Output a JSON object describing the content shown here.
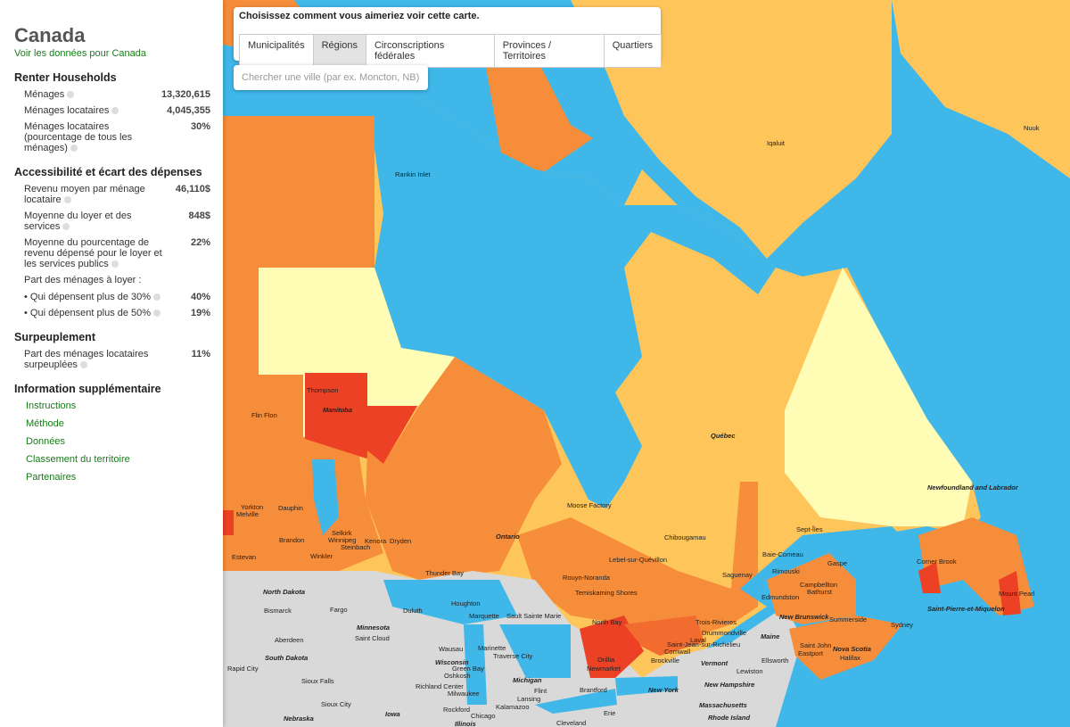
{
  "sidebar": {
    "title": "Canada",
    "link": "Voir les données pour Canada",
    "sections": [
      {
        "heading": "Renter Households",
        "rows": [
          [
            "Ménages",
            "13,320,615"
          ],
          [
            "Ménages locataires",
            "4,045,355"
          ],
          [
            "Ménages locataires (pourcentage de tous les ménages)",
            "30%"
          ]
        ]
      },
      {
        "heading": "Accessibilité et écart des dépenses",
        "rows": [
          [
            "Revenu moyen par ménage locataire",
            "46,110$"
          ],
          [
            "Moyenne du loyer et des services",
            "848$"
          ],
          [
            "Moyenne du pourcentage de revenu dépensé pour le loyer et les services publics",
            "22%"
          ]
        ],
        "subheading": "Part des ménages à loyer :",
        "subrows": [
          [
            "• Qui dépensent plus de 30%",
            "40%"
          ],
          [
            "• Qui dépensent plus de 50%",
            "19%"
          ]
        ]
      },
      {
        "heading": "Surpeuplement",
        "rows": [
          [
            "Part des ménages locataires surpeuplées",
            "11%"
          ]
        ]
      }
    ],
    "info_heading": "Information supplémentaire",
    "info_links": [
      "Instructions",
      "Méthode",
      "Données",
      "Classement du territoire",
      "Partenaires"
    ]
  },
  "map": {
    "prompt": "Choisissez comment vous aimeriez voir cette carte.",
    "tabs": [
      "Municipalités",
      "Régions",
      "Circonscriptions fédérales",
      "Provinces / Territoires",
      "Quartiers"
    ],
    "search_placeholder": "Chercher une ville  (par ex. Moncton, NB)",
    "labels": [
      "Nuuk",
      "Iqaluit",
      "Rankin Inlet",
      "Thompson",
      "Manitoba",
      "Flin Flon",
      "Québec",
      "Newfoundland and Labrador",
      "Yorkton",
      "Melville",
      "Dauphin",
      "Selkirk",
      "Winnipeg",
      "Steinbach",
      "Brandon",
      "Winkler",
      "Estevan",
      "Kenora",
      "Dryden",
      "Ontario",
      "Moose Factory",
      "Chibougamau",
      "Sept-Îles",
      "Lebel-sur-Quévillon",
      "Thunder Bay",
      "Rouyn-Noranda",
      "Baie-Comeau",
      "Rimouski",
      "Gaspe",
      "Saguenay",
      "Corner Brook",
      "Mount Pearl",
      "Saint-Pierre-et-Miquelon",
      "Temiskaming Shores",
      "Edmundston",
      "Campbellton",
      "Bathurst",
      "New Brunswick",
      "Summerside",
      "Sydney",
      "North Dakota",
      "Fargo",
      "Bismarck",
      "Duluth",
      "Houghton",
      "Marquette",
      "Sault Sainte Marie",
      "Minnesota",
      "Saint Cloud",
      "Aberdeen",
      "South Dakota",
      "Rapid City",
      "Sioux Falls",
      "Wausau",
      "Marinette",
      "Traverse City",
      "Wisconsin",
      "Green Bay",
      "Michigan",
      "Richland Center",
      "Oshkosh",
      "Milwaukee",
      "Rockford",
      "Chicago",
      "Iowa",
      "Illinois",
      "Nebraska",
      "Sioux City",
      "Kalamazoo",
      "Lansing",
      "Flint",
      "Cleveland",
      "Erie",
      "North Bay",
      "Orillia",
      "Newmarket",
      "Brantford",
      "Trois-Rivieres",
      "Drummondville",
      "Laval",
      "Saint-Jean-sur-Richelieu",
      "Cornwall",
      "Brockville",
      "Vermont",
      "Maine",
      "Lewiston",
      "New Hampshire",
      "New York",
      "Massachusetts",
      "Rhode Island",
      "Ellsworth",
      "Saint John",
      "Eastport",
      "Nova Scotia",
      "Halifax"
    ]
  }
}
